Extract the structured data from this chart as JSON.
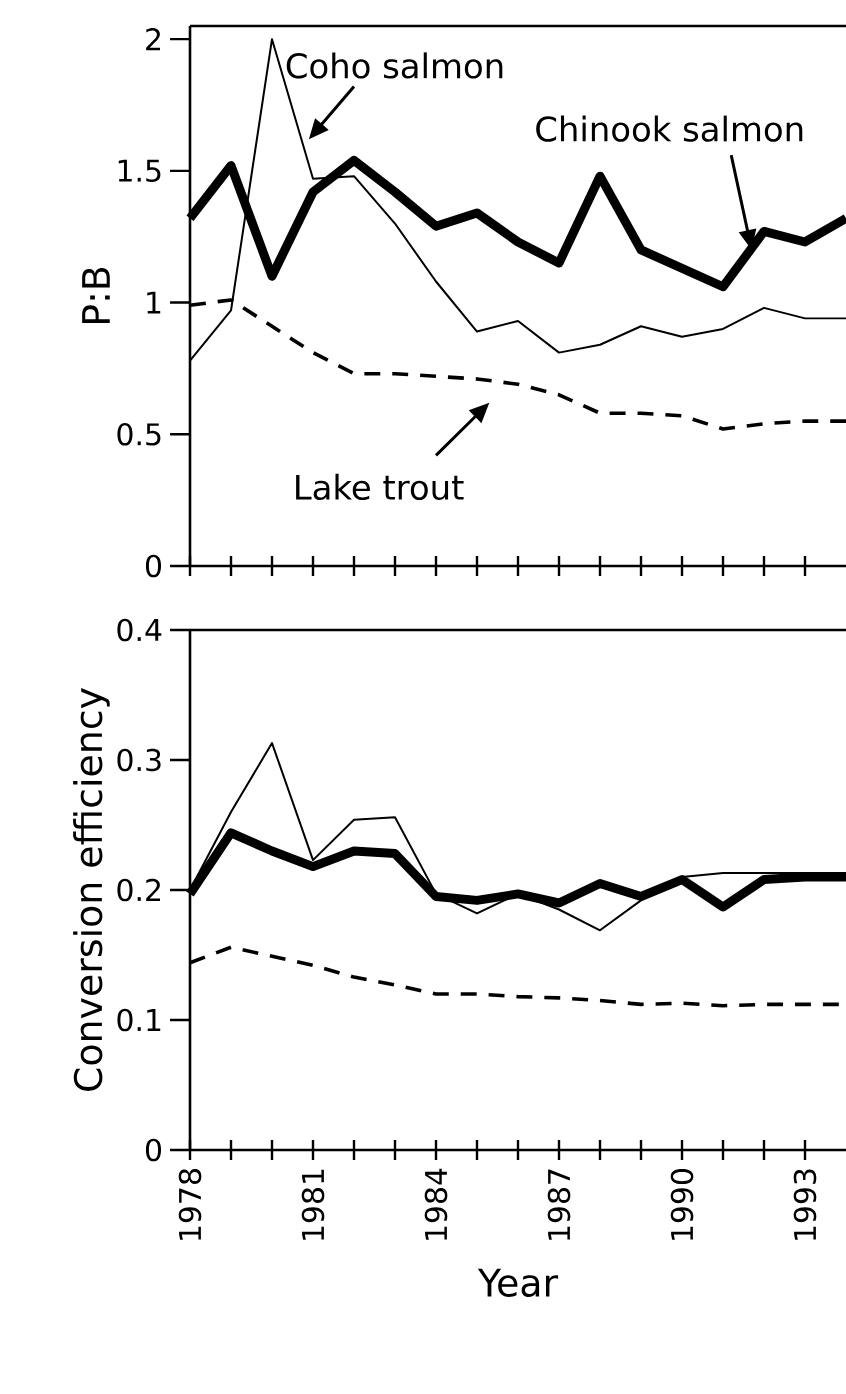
{
  "chart_data": [
    {
      "type": "line",
      "ylabel": "P:B",
      "xlim": [
        1978,
        1994
      ],
      "ylim": [
        0,
        2.05
      ],
      "yticks": [
        0,
        0.5,
        1,
        1.5,
        2
      ],
      "xticks": [
        {
          "value": 1978,
          "label": null
        },
        {
          "value": 1979,
          "label": null
        },
        {
          "value": 1980,
          "label": null
        },
        {
          "value": 1981,
          "label": null
        },
        {
          "value": 1982,
          "label": null
        },
        {
          "value": 1983,
          "label": null
        },
        {
          "value": 1984,
          "label": null
        },
        {
          "value": 1985,
          "label": null
        },
        {
          "value": 1986,
          "label": null
        },
        {
          "value": 1987,
          "label": null
        },
        {
          "value": 1988,
          "label": null
        },
        {
          "value": 1989,
          "label": null
        },
        {
          "value": 1990,
          "label": null
        },
        {
          "value": 1991,
          "label": null
        },
        {
          "value": 1992,
          "label": null
        },
        {
          "value": 1993,
          "label": null
        }
      ],
      "tick_labels": "y",
      "x": [
        1978,
        1979,
        1980,
        1981,
        1982,
        1983,
        1984,
        1985,
        1986,
        1987,
        1988,
        1989,
        1990,
        1991,
        1992,
        1993,
        1994
      ],
      "series": [
        {
          "name": "Coho salmon",
          "color": "#000000",
          "line_style": "solid",
          "values": [
            0.78,
            0.97,
            2.0,
            1.47,
            1.48,
            1.3,
            1.08,
            0.89,
            0.93,
            0.81,
            0.84,
            0.91,
            0.87,
            0.9,
            0.98,
            0.94,
            0.94
          ]
        },
        {
          "name": "Chinook salmon",
          "color": "#000000",
          "line_style": "solid",
          "values": [
            1.32,
            1.52,
            1.1,
            1.42,
            1.54,
            1.42,
            1.29,
            1.34,
            1.23,
            1.15,
            1.48,
            1.2,
            1.13,
            1.06,
            1.27,
            1.23,
            1.32
          ]
        },
        {
          "name": "Lake trout",
          "color": "#000000",
          "line_style": "dashed",
          "values": [
            0.99,
            1.01,
            0.91,
            0.81,
            0.73,
            0.73,
            0.72,
            0.71,
            0.69,
            0.65,
            0.58,
            0.58,
            0.57,
            0.52,
            0.54,
            0.55,
            0.55
          ]
        }
      ]
    },
    {
      "type": "line",
      "ylabel": "Conversion efficiency",
      "xlabel": "Year",
      "xlim": [
        1978,
        1994
      ],
      "ylim": [
        0,
        0.4
      ],
      "yticks": [
        0,
        0.1,
        0.2,
        0.3,
        0.4
      ],
      "xticks": [
        1978,
        {
          "value": 1979,
          "label": null
        },
        {
          "value": 1980,
          "label": null
        },
        1981,
        {
          "value": 1982,
          "label": null
        },
        {
          "value": 1983,
          "label": null
        },
        1984,
        {
          "value": 1985,
          "label": null
        },
        {
          "value": 1986,
          "label": null
        },
        1987,
        {
          "value": 1988,
          "label": null
        },
        {
          "value": 1989,
          "label": null
        },
        1990,
        {
          "value": 1991,
          "label": null
        },
        {
          "value": 1992,
          "label": null
        },
        1993
      ],
      "x": [
        1978,
        1979,
        1980,
        1981,
        1982,
        1983,
        1984,
        1985,
        1986,
        1987,
        1988,
        1989,
        1990,
        1991,
        1992,
        1993,
        1994
      ],
      "series": [
        {
          "color": "#000000",
          "line_style": "solid",
          "values": [
            0.2,
            0.26,
            0.313,
            0.223,
            0.254,
            0.256,
            0.197,
            0.182,
            0.197,
            0.185,
            0.169,
            0.192,
            0.21,
            0.213,
            0.213,
            0.213,
            0.213
          ]
        },
        {
          "color": "#000000",
          "line_style": "solid",
          "values": [
            0.197,
            0.244,
            0.23,
            0.218,
            0.23,
            0.228,
            0.195,
            0.192,
            0.197,
            0.19,
            0.205,
            0.195,
            0.208,
            0.187,
            0.208,
            0.21,
            0.21
          ]
        },
        {
          "color": "#000000",
          "line_style": "dashed",
          "values": [
            0.144,
            0.156,
            0.149,
            0.142,
            0.133,
            0.127,
            0.12,
            0.12,
            0.118,
            0.117,
            0.115,
            0.112,
            0.113,
            0.111,
            0.112,
            0.112,
            0.112
          ]
        }
      ]
    }
  ]
}
